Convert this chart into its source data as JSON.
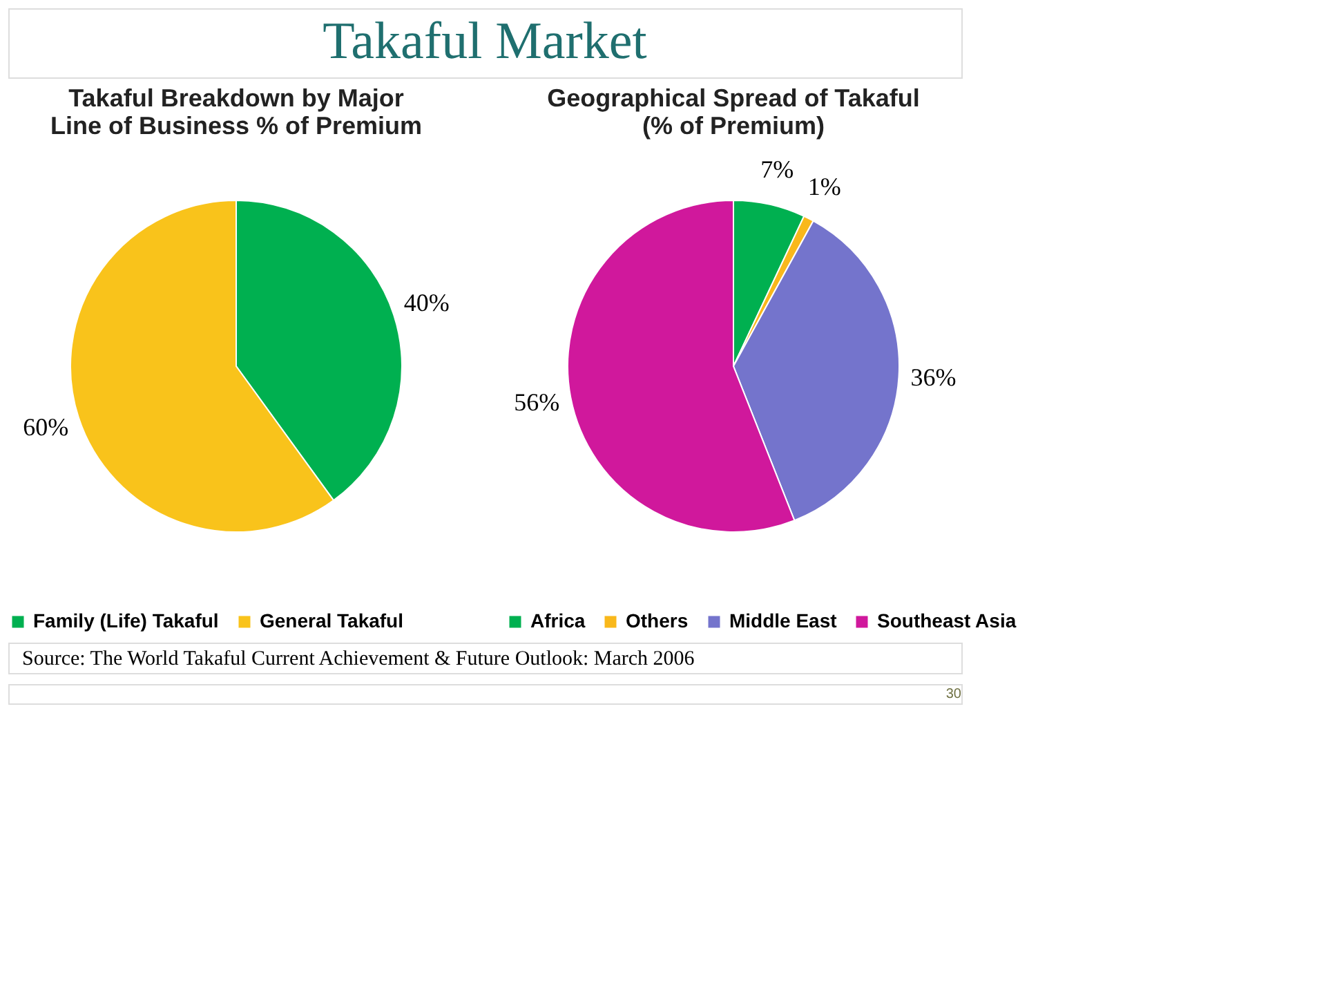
{
  "chart_data": [
    {
      "type": "pie",
      "title": "Takaful Breakdown by Major\nLine of Business % of Premium",
      "categories": [
        "Family (Life) Takaful",
        "General Takaful"
      ],
      "values": [
        40,
        60
      ],
      "colors": [
        "#00b050",
        "#f9c31b"
      ],
      "value_labels": [
        "40%",
        "60%"
      ],
      "legend": "bottom",
      "annotations": [
        "Takaful Market",
        "Source: The World Takaful Current Achievement & Future Outlook: March 2006",
        "30"
      ]
    },
    {
      "type": "pie",
      "title": "Geographical Spread of Takaful\n(% of Premium)",
      "categories": [
        "Africa",
        "Others",
        "Middle East",
        "Southeast Asia"
      ],
      "values": [
        7,
        1,
        36,
        56
      ],
      "colors": [
        "#00b050",
        "#f9b81b",
        "#7474cc",
        "#d0189c"
      ],
      "value_labels": [
        "7%",
        "1%",
        "36%",
        "56%"
      ],
      "legend": "bottom"
    }
  ]
}
